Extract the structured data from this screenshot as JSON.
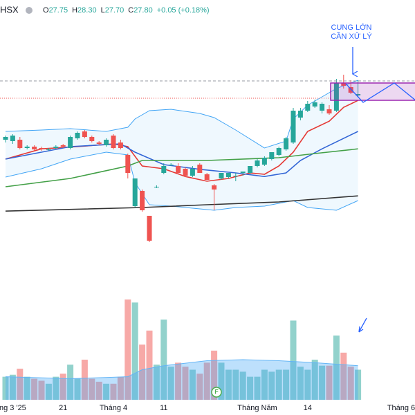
{
  "chart_data": {
    "type": "candlestick",
    "header": {
      "symbol": "HSX",
      "ohlc": [
        {
          "key": "O",
          "value": "27.75"
        },
        {
          "key": "H",
          "value": "28.30"
        },
        {
          "key": "L",
          "value": "27.70"
        },
        {
          "key": "C",
          "value": "27.80"
        }
      ],
      "change": "+0.05 (+0.18%)"
    },
    "annotation": [
      "CUNG LỚN",
      "CẦN XỬ LÝ"
    ],
    "event_marker": "F",
    "categories": [
      null,
      "ng 3 '25",
      null,
      null,
      null,
      null,
      null,
      null,
      "21",
      null,
      null,
      null,
      null,
      null,
      null,
      "Tháng 4",
      null,
      null,
      null,
      null,
      null,
      null,
      "11",
      null,
      null,
      null,
      null,
      null,
      null,
      null,
      null,
      null,
      null,
      null,
      null,
      "Tháng Năm",
      null,
      null,
      null,
      null,
      null,
      null,
      "14",
      null,
      null,
      null,
      null,
      null,
      null,
      null,
      null,
      null,
      null,
      null,
      null,
      "Tháng 6"
    ],
    "open": [
      26.15,
      26.1,
      26.15,
      25.85,
      25.9,
      25.85,
      25.8,
      25.85,
      25.95,
      25.85,
      26.2,
      26.45,
      26.25,
      26.05,
      25.95,
      26.3,
      26.05,
      25.6,
      23.75,
      24.3,
      23.4,
      24.45,
      24.95,
      25.25,
      25.2,
      25.1,
      24.85,
      25.25,
      24.9,
      24.5,
      24.75,
      24.8,
      24.85,
      24.95,
      24.95,
      25.2,
      25.25,
      25.45,
      25.6,
      25.8,
      26.05,
      26.95,
      27.2,
      27.35,
      27.2,
      27.25,
      27.2,
      28.2,
      28.05,
      27.75,
      null,
      null,
      null,
      null,
      null,
      null
    ],
    "high": [
      26.3,
      26.35,
      26.25,
      25.95,
      25.95,
      25.9,
      25.85,
      25.95,
      26.0,
      26.3,
      26.45,
      26.5,
      26.3,
      26.1,
      26.2,
      26.35,
      26.15,
      25.65,
      24.75,
      24.35,
      23.4,
      24.5,
      25.3,
      25.3,
      25.3,
      25.15,
      25.2,
      25.3,
      24.95,
      24.55,
      24.95,
      24.95,
      24.95,
      25.0,
      25.2,
      25.45,
      25.55,
      25.7,
      25.9,
      26.25,
      27.3,
      27.3,
      27.55,
      27.6,
      27.5,
      27.4,
      28.35,
      28.5,
      28.3,
      28.3,
      null,
      null,
      null,
      null,
      null,
      null
    ],
    "low": [
      26.05,
      26.0,
      25.8,
      25.8,
      25.75,
      25.75,
      25.75,
      25.8,
      25.85,
      25.8,
      26.15,
      26.2,
      26.05,
      25.95,
      25.9,
      25.8,
      25.8,
      24.75,
      23.7,
      23.55,
      22.45,
      24.4,
      24.9,
      25.2,
      24.9,
      24.8,
      24.8,
      24.95,
      24.7,
      23.6,
      24.7,
      24.75,
      24.65,
      24.85,
      24.9,
      25.15,
      25.2,
      25.4,
      25.55,
      25.75,
      26.0,
      26.85,
      27.15,
      27.3,
      27.1,
      27.05,
      27.15,
      28.0,
      27.8,
      27.7,
      null,
      null,
      null,
      null,
      null,
      null
    ],
    "close": [
      26.25,
      26.3,
      25.85,
      25.9,
      25.8,
      25.8,
      25.8,
      25.9,
      25.9,
      26.25,
      26.4,
      26.25,
      26.1,
      26.0,
      26.15,
      25.85,
      25.85,
      24.95,
      24.75,
      23.6,
      22.5,
      24.45,
      25.2,
      25.25,
      24.95,
      24.85,
      25.1,
      24.95,
      24.7,
      24.35,
      24.95,
      24.95,
      24.85,
      25.0,
      25.2,
      25.4,
      25.5,
      25.7,
      25.85,
      26.2,
      27.2,
      27.2,
      27.45,
      27.5,
      27.45,
      27.1,
      28.2,
      28.1,
      27.85,
      27.8,
      null,
      null,
      null,
      null,
      null,
      null
    ],
    "up_color": "#26a69a",
    "down_color": "#ef5350",
    "ylim": [
      20.7,
      31.2
    ],
    "band": {
      "color": "#42a5f5",
      "fill": "rgba(33,150,243,0.07)",
      "x": [
        0,
        5,
        9,
        14,
        17,
        18,
        20,
        23,
        27,
        29,
        32,
        36,
        39,
        40,
        42,
        44,
        46,
        49
      ],
      "upper": [
        26.45,
        26.5,
        26.55,
        26.45,
        26.6,
        26.9,
        27.2,
        27.25,
        27.1,
        26.95,
        26.5,
        25.85,
        26.1,
        26.9,
        27.4,
        27.7,
        28.0,
        28.3
      ],
      "lower": [
        24.8,
        25.1,
        25.45,
        25.7,
        25.6,
        24.6,
        23.8,
        23.75,
        23.65,
        23.6,
        23.7,
        23.75,
        23.9,
        23.95,
        23.7,
        23.65,
        23.6,
        23.95
      ]
    },
    "overlays": [
      {
        "color": "#e53935",
        "x": [
          0,
          5,
          10,
          15,
          17,
          19,
          22,
          25,
          28,
          31,
          34,
          36,
          38,
          40,
          42,
          45,
          47,
          49
        ],
        "values": [
          25.45,
          25.82,
          25.9,
          26.0,
          25.9,
          25.2,
          25.1,
          24.82,
          24.65,
          24.75,
          24.95,
          24.9,
          25.2,
          25.7,
          26.45,
          26.82,
          27.32,
          27.57
        ]
      },
      {
        "color": "#3366d6",
        "x": [
          0,
          9,
          16,
          18,
          22,
          27,
          32,
          36,
          39,
          41,
          44,
          49
        ],
        "values": [
          25.45,
          25.9,
          26.0,
          25.7,
          25.25,
          25.08,
          24.95,
          24.82,
          24.95,
          25.4,
          25.82,
          26.45
        ]
      },
      {
        "color": "#43a047",
        "x": [
          0,
          9,
          17,
          19,
          28,
          38,
          43,
          49
        ],
        "values": [
          24.45,
          24.75,
          25.2,
          25.4,
          25.4,
          25.5,
          25.65,
          25.82
        ]
      },
      {
        "color": "#333333",
        "x": [
          0,
          19,
          28,
          38,
          49
        ],
        "values": [
          23.57,
          23.7,
          23.8,
          23.9,
          24.12
        ]
      }
    ],
    "volume": {
      "values": [
        2.3,
        2.5,
        3.1,
        2.3,
        2.1,
        1.9,
        1.6,
        2.3,
        2.6,
        3.5,
        2.1,
        4.0,
        2.1,
        1.8,
        1.6,
        1.6,
        2.3,
        10.0,
        9.7,
        5.5,
        6.9,
        3.5,
        8.0,
        3.3,
        3.7,
        3.3,
        3.0,
        2.6,
        3.7,
        4.9,
        3.7,
        3.0,
        3.0,
        2.8,
        2.3,
        2.3,
        3.0,
        2.8,
        3.0,
        3.0,
        7.9,
        3.3,
        3.0,
        4.0,
        3.4,
        3.4,
        6.4,
        4.7,
        3.3,
        3.0,
        null,
        null,
        null,
        null,
        null,
        null
      ],
      "up_color": "rgba(38,166,154,0.5)",
      "down_color": "rgba(239,83,80,0.5)",
      "ylim": [
        0,
        12
      ],
      "ma": {
        "color": "#64b5f6",
        "fill": "rgba(66,165,245,0.35)",
        "x": [
          0,
          9,
          17,
          19,
          22,
          28,
          33,
          38,
          43,
          49
        ],
        "values": [
          2.3,
          2.1,
          2.3,
          3.0,
          3.4,
          3.9,
          4.0,
          3.9,
          3.7,
          3.4
        ]
      }
    }
  }
}
